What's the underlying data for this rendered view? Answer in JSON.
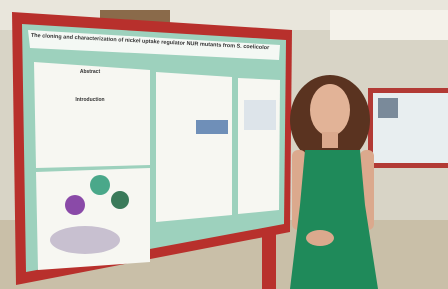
{
  "poster": {
    "title": "The cloning and characterization of nickel uptake regulator NUR mutants from S. coelicolor",
    "sections": [
      "Abstract",
      "Introduction"
    ]
  }
}
